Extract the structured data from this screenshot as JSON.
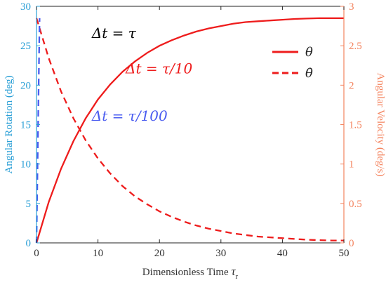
{
  "chart_data": {
    "type": "line",
    "xlabel": "Dimensionless Time",
    "xlabel_symbol": "τ",
    "xlabel_subscript": "r",
    "ylabel_left": "Angular Rotation (deg)",
    "ylabel_right": "Angular Velocity (deg/s)",
    "xlim": [
      0,
      50
    ],
    "ylim_left": [
      0,
      30
    ],
    "ylim_right": [
      0,
      3
    ],
    "xticks": [
      "0",
      "10",
      "20",
      "30",
      "40",
      "50"
    ],
    "yticks_left": [
      "0",
      "5",
      "10",
      "15",
      "20",
      "25",
      "30"
    ],
    "yticks_right": [
      "0",
      "0.5",
      "1",
      "1.5",
      "2",
      "2.5",
      "3"
    ],
    "grid": false,
    "legend_position": "top-right",
    "colors": {
      "left_axis": "#2a9fd6",
      "right_axis": "#f4845f",
      "theta": "#ee1c1c",
      "blue": "#4a5cf0",
      "black": "#000000"
    },
    "series": [
      {
        "name": "θ",
        "axis": "left",
        "style": "solid",
        "color": "#ee1c1c",
        "x": [
          0,
          2,
          4,
          6,
          8,
          10,
          12,
          14,
          16,
          18,
          20,
          22,
          24,
          26,
          28,
          30,
          32,
          34,
          36,
          38,
          40,
          42,
          44,
          46,
          48,
          50
        ],
        "y": [
          0,
          5.2,
          9.4,
          12.9,
          15.8,
          18.2,
          20.1,
          21.7,
          23.0,
          24.1,
          25.0,
          25.7,
          26.3,
          26.8,
          27.2,
          27.5,
          27.8,
          28.0,
          28.1,
          28.2,
          28.3,
          28.4,
          28.45,
          28.5,
          28.5,
          28.5
        ]
      },
      {
        "name": "θ̇",
        "axis": "right",
        "style": "dashed",
        "color": "#ee1c1c",
        "x": [
          0,
          2,
          4,
          6,
          8,
          10,
          12,
          14,
          16,
          18,
          20,
          22,
          24,
          26,
          28,
          30,
          32,
          34,
          36,
          38,
          40,
          42,
          44,
          46,
          48,
          50
        ],
        "y": [
          2.85,
          2.34,
          1.92,
          1.58,
          1.3,
          1.07,
          0.88,
          0.72,
          0.59,
          0.49,
          0.4,
          0.33,
          0.27,
          0.22,
          0.18,
          0.15,
          0.12,
          0.1,
          0.08,
          0.07,
          0.06,
          0.05,
          0.04,
          0.035,
          0.03,
          0.03
        ]
      },
      {
        "axis": "left",
        "style": "dashed",
        "color": "#4a5cf0",
        "x": [
          0,
          0.5
        ],
        "y": [
          0,
          28.5
        ]
      }
    ],
    "annotations": [
      {
        "text": "Δt = τ",
        "color": "#000000",
        "x": 9,
        "y": 26
      },
      {
        "text": "Δt = τ/10",
        "color": "#ee1c1c",
        "x": 14.5,
        "y": 21.5
      },
      {
        "text": "Δt = τ/100",
        "color": "#4a5cf0",
        "x": 9,
        "y": 15.5
      }
    ]
  }
}
